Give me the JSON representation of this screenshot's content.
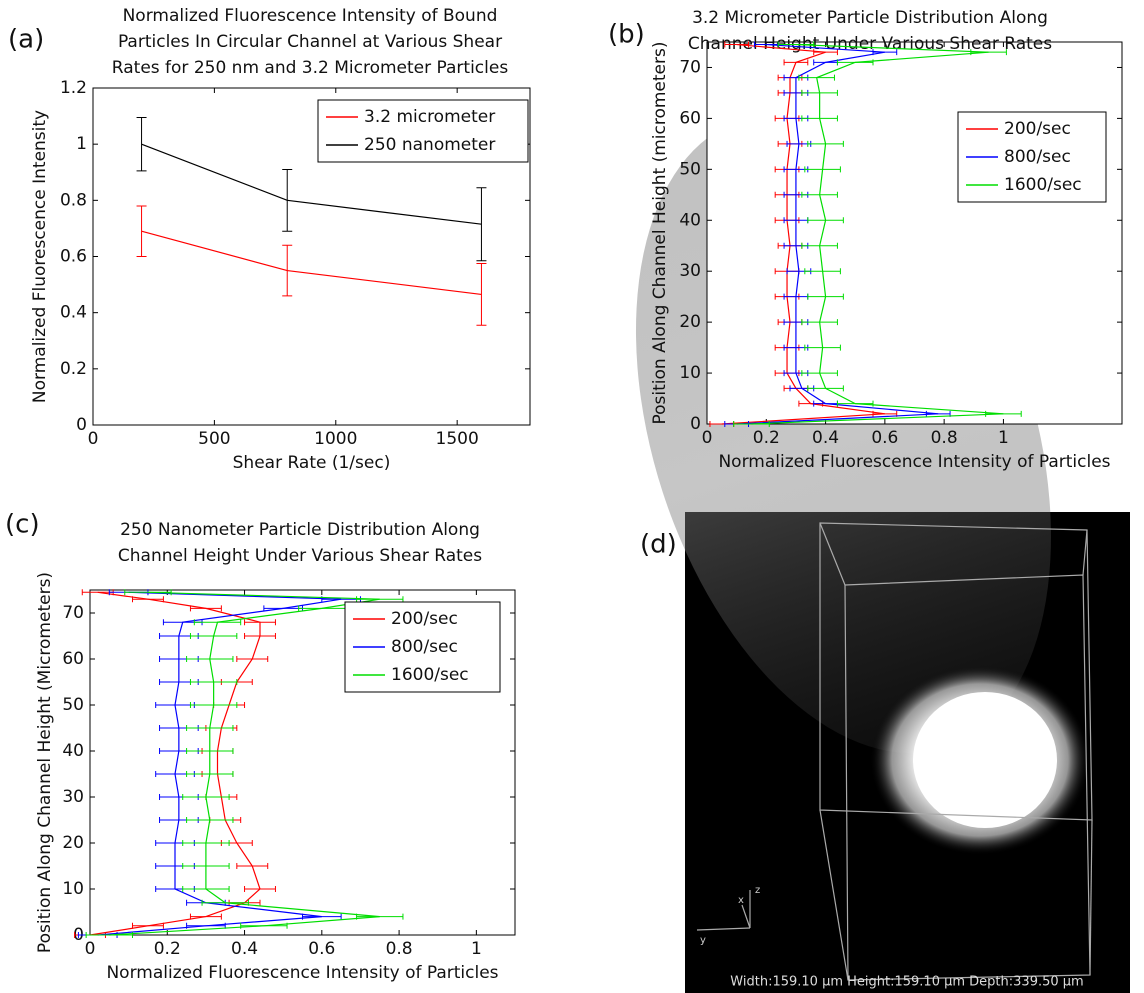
{
  "chart_data": [
    {
      "type": "line",
      "panel_label": "(a)",
      "title": [
        "Normalized Fluorescence Intensity of Bound",
        "Particles In Circular Channel at Various Shear",
        "Rates for 250 nm and 3.2 Micrometer Particles"
      ],
      "x_label": "Shear Rate (1/sec)",
      "y_label": "Normalized Fluorescence Intensity",
      "x": [
        200,
        800,
        1600
      ],
      "series": [
        {
          "name": "3.2 micrometer",
          "color": "#ff0000",
          "values": [
            0.69,
            0.55,
            0.465
          ],
          "errors": [
            0.09,
            0.09,
            0.11
          ]
        },
        {
          "name": "250 nanometer",
          "color": "#000000",
          "values": [
            1.0,
            0.8,
            0.715
          ],
          "errors": [
            0.095,
            0.11,
            0.13
          ]
        }
      ],
      "xlim": [
        0,
        1800
      ],
      "xticks": [
        0,
        500,
        1000,
        1500
      ],
      "ylim": [
        0,
        1.2
      ],
      "yticks": [
        0,
        0.2,
        0.4,
        0.6,
        0.8,
        1,
        1.2
      ],
      "legend": "upper right"
    },
    {
      "type": "line",
      "orientation": "horizontal",
      "panel_label": "(b)",
      "title": [
        "3.2 Micrometer Particle Distribution Along",
        "Channel Height Under Various Shear Rates"
      ],
      "x_label": "Normalized Fluorescence Intensity of Particles",
      "y_label": "Position Along Channel Height (micrometers)",
      "y": [
        0,
        2,
        4,
        7,
        10,
        15,
        20,
        25,
        30,
        35,
        40,
        45,
        50,
        55,
        60,
        65,
        68,
        71,
        73,
        74.5
      ],
      "series": [
        {
          "name": "200/sec",
          "color": "#ff0000",
          "error": 0.04,
          "values": [
            0.05,
            0.6,
            0.35,
            0.3,
            0.27,
            0.27,
            0.28,
            0.27,
            0.27,
            0.28,
            0.27,
            0.27,
            0.27,
            0.28,
            0.27,
            0.28,
            0.28,
            0.3,
            0.4,
            0.1
          ]
        },
        {
          "name": "800/sec",
          "color": "#0000ff",
          "error": 0.04,
          "values": [
            0.1,
            0.78,
            0.4,
            0.32,
            0.3,
            0.3,
            0.3,
            0.3,
            0.31,
            0.3,
            0.3,
            0.3,
            0.3,
            0.31,
            0.3,
            0.3,
            0.3,
            0.4,
            0.6,
            0.2
          ]
        },
        {
          "name": "1600/sec",
          "color": "#00dd00",
          "error": 0.06,
          "values": [
            0.15,
            1.0,
            0.5,
            0.4,
            0.38,
            0.39,
            0.38,
            0.4,
            0.39,
            0.38,
            0.4,
            0.38,
            0.39,
            0.4,
            0.38,
            0.38,
            0.37,
            0.5,
            0.95,
            0.3
          ]
        }
      ],
      "xlim": [
        0,
        1.4
      ],
      "xticks": [
        0,
        0.2,
        0.4,
        0.6,
        0.8,
        1
      ],
      "ylim": [
        0,
        75
      ],
      "yticks": [
        0,
        10,
        20,
        30,
        40,
        50,
        60,
        70
      ],
      "legend": "upper right"
    },
    {
      "type": "line",
      "orientation": "horizontal",
      "panel_label": "(c)",
      "title": [
        "250 Nanometer Particle Distribution Along",
        "Channel Height Under Various Shear Rates"
      ],
      "x_label": "Normalized Fluorescence Intensity of Particles",
      "y_label": "Position Along Channel Height (Micrometers)",
      "y": [
        0,
        2,
        4,
        7,
        10,
        15,
        20,
        25,
        30,
        35,
        40,
        45,
        50,
        55,
        60,
        65,
        68,
        71,
        73,
        74.5
      ],
      "series": [
        {
          "name": "200/sec",
          "color": "#ff0000",
          "error": 0.04,
          "values": [
            0.0,
            0.15,
            0.3,
            0.4,
            0.44,
            0.42,
            0.38,
            0.35,
            0.34,
            0.33,
            0.33,
            0.34,
            0.36,
            0.38,
            0.42,
            0.44,
            0.44,
            0.3,
            0.15,
            0.02
          ]
        },
        {
          "name": "800/sec",
          "color": "#0000ff",
          "error": 0.05,
          "values": [
            0.02,
            0.3,
            0.6,
            0.3,
            0.22,
            0.22,
            0.22,
            0.23,
            0.23,
            0.22,
            0.23,
            0.23,
            0.22,
            0.23,
            0.23,
            0.23,
            0.24,
            0.5,
            0.65,
            0.1
          ]
        },
        {
          "name": "1600/sec",
          "color": "#00dd00",
          "error": 0.06,
          "values": [
            0.05,
            0.45,
            0.75,
            0.35,
            0.3,
            0.3,
            0.3,
            0.31,
            0.3,
            0.31,
            0.31,
            0.31,
            0.32,
            0.32,
            0.31,
            0.32,
            0.33,
            0.6,
            0.75,
            0.15
          ]
        }
      ],
      "xlim": [
        0,
        1.1
      ],
      "xticks": [
        0,
        0.2,
        0.4,
        0.6,
        0.8,
        1
      ],
      "ylim": [
        0,
        75
      ],
      "yticks": [
        0,
        10,
        20,
        30,
        40,
        50,
        60,
        70
      ],
      "legend": "upper right"
    }
  ],
  "image": {
    "panel_label": "(d)",
    "caption": "Width:159.10 µm Height:159.10 µm Depth:339.50 µm",
    "axis_labels": [
      "x",
      "y",
      "z"
    ]
  }
}
